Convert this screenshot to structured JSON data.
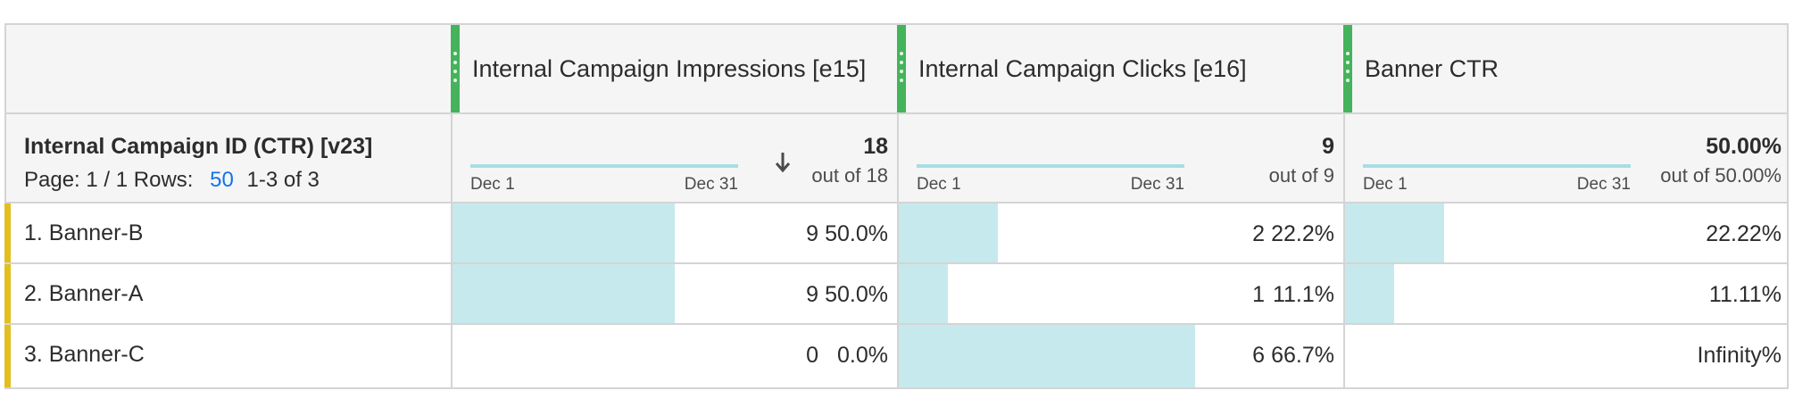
{
  "table": {
    "dimension_title": "Internal Campaign ID (CTR) [v23]",
    "paging": {
      "page_label": "Page: 1 / 1",
      "rows_label": "Rows:",
      "rows_value": "50",
      "range": "1-3 of 3"
    },
    "columns": [
      {
        "name": "Internal Campaign Impressions [e15]",
        "total": "18",
        "out_of": "out of 18",
        "trend_start": "Dec 1",
        "trend_end": "Dec 31",
        "sorted": true,
        "max": 18
      },
      {
        "name": "Internal Campaign Clicks [e16]",
        "total": "9",
        "out_of": "out of 9",
        "trend_start": "Dec 1",
        "trend_end": "Dec 31",
        "sorted": false,
        "max": 9
      },
      {
        "name": "Banner CTR",
        "total": "50.00%",
        "out_of": "out of 50.00%",
        "trend_start": "Dec 1",
        "trend_end": "Dec 31",
        "sorted": false,
        "max": 50
      }
    ],
    "rows": [
      {
        "label": "1.  Banner-B",
        "cells": [
          {
            "value": "9",
            "percent": "50.0%",
            "fill": 0.5
          },
          {
            "value": "2",
            "percent": "22.2%",
            "fill": 0.222
          },
          {
            "value": "22.22%",
            "percent": "",
            "fill": 0.222
          }
        ]
      },
      {
        "label": "2.  Banner-A",
        "cells": [
          {
            "value": "9",
            "percent": "50.0%",
            "fill": 0.5
          },
          {
            "value": "1",
            "percent": "11.1%",
            "fill": 0.111
          },
          {
            "value": "11.11%",
            "percent": "",
            "fill": 0.111
          }
        ]
      },
      {
        "label": "3.  Banner-C",
        "cells": [
          {
            "value": "0",
            "percent": "0.0%",
            "fill": 0
          },
          {
            "value": "6",
            "percent": "66.7%",
            "fill": 0.667
          },
          {
            "value": "Infinity%",
            "percent": "",
            "fill": 0
          }
        ]
      }
    ],
    "colors": {
      "handle": "#45b35b",
      "bar": "#c6e9ee",
      "trend": "#a8dde5",
      "row_marker": "#e3be1f",
      "link": "#1473e6"
    },
    "icons": {
      "sort": "sort-descending-icon",
      "drag": "drag-handle-icon"
    }
  }
}
